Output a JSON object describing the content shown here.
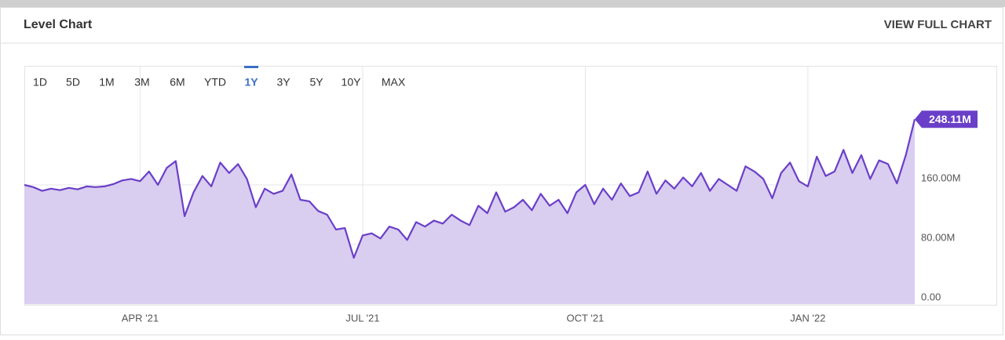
{
  "header": {
    "title": "Level Chart",
    "link": "VIEW FULL CHART"
  },
  "range_buttons": {
    "labels": [
      "1D",
      "5D",
      "1M",
      "3M",
      "6M",
      "YTD",
      "1Y",
      "3Y",
      "5Y",
      "10Y",
      "MAX"
    ],
    "selected": 6
  },
  "chart_data": {
    "type": "area",
    "color": "#6a3fc8",
    "fill": "#d9cdf0",
    "categories": [
      null,
      null,
      null,
      null,
      null,
      null,
      null,
      null,
      null,
      null,
      null,
      null,
      null,
      "APR '21",
      null,
      null,
      null,
      null,
      null,
      null,
      null,
      null,
      null,
      null,
      null,
      null,
      null,
      null,
      null,
      null,
      null,
      null,
      null,
      null,
      null,
      null,
      null,
      null,
      "JUL '21",
      null,
      null,
      null,
      null,
      null,
      null,
      null,
      null,
      null,
      null,
      null,
      null,
      null,
      null,
      null,
      null,
      null,
      null,
      null,
      null,
      null,
      null,
      null,
      null,
      "OCT '21",
      null,
      null,
      null,
      null,
      null,
      null,
      null,
      null,
      null,
      null,
      null,
      null,
      null,
      null,
      null,
      null,
      null,
      null,
      null,
      null,
      null,
      null,
      null,
      null,
      "JAN '22",
      null,
      null,
      null,
      null,
      null,
      null,
      null,
      null,
      null,
      null,
      null,
      null
    ],
    "values": [
      160,
      157,
      152,
      155,
      153,
      156,
      154,
      158,
      157,
      158,
      161,
      166,
      168,
      165,
      178,
      160,
      183,
      192,
      118,
      150,
      172,
      158,
      190,
      176,
      188,
      168,
      130,
      155,
      148,
      152,
      174,
      140,
      138,
      125,
      120,
      100,
      102,
      62,
      92,
      95,
      88,
      104,
      100,
      86,
      110,
      104,
      112,
      108,
      120,
      112,
      106,
      132,
      122,
      150,
      124,
      130,
      140,
      126,
      148,
      132,
      140,
      122,
      150,
      160,
      134,
      155,
      140,
      162,
      145,
      150,
      178,
      148,
      166,
      155,
      170,
      158,
      176,
      152,
      168,
      160,
      152,
      185,
      178,
      168,
      142,
      176,
      190,
      165,
      158,
      198,
      172,
      178,
      207,
      176,
      200,
      168,
      193,
      188,
      162,
      200,
      248.11
    ],
    "value_labels": [
      null,
      null,
      null,
      null,
      null,
      null,
      null,
      null,
      null,
      null,
      null,
      null,
      null,
      null,
      null,
      null,
      null,
      null,
      null,
      null,
      null,
      null,
      null,
      null,
      null,
      null,
      null,
      null,
      null,
      null,
      null,
      null,
      null,
      null,
      null,
      null,
      null,
      null,
      null,
      null,
      null,
      null,
      null,
      null,
      null,
      null,
      null,
      null,
      null,
      null,
      null,
      null,
      null,
      null,
      null,
      null,
      null,
      null,
      null,
      null,
      null,
      null,
      null,
      null,
      null,
      null,
      null,
      null,
      null,
      null,
      null,
      null,
      null,
      null,
      null,
      null,
      null,
      null,
      null,
      null,
      null,
      null,
      null,
      null,
      null,
      null,
      null,
      null,
      null,
      null,
      null,
      null,
      null,
      null,
      null,
      null,
      null,
      null,
      null,
      null,
      "248.11M"
    ],
    "ylim": [
      0,
      320
    ],
    "yticks": [
      {
        "value": 0,
        "label": "0.00"
      },
      {
        "value": 80,
        "label": "80.00M"
      },
      {
        "value": 160,
        "label": "160.00M"
      }
    ],
    "grid": true
  }
}
